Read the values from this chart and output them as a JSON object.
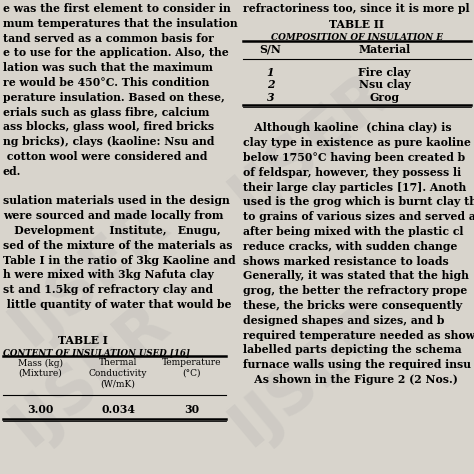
{
  "bg_color": "#d8d4cc",
  "page_bg": "#f0ede6",
  "watermark_text": "IJSER",
  "left_text_lines": [
    "e was the first element to consider in",
    "mum temperatures that the insulation",
    "tand served as a common basis for",
    "e to use for the application. Also, the",
    "lation was such that the maximum",
    "re would be 450°C. This condition",
    "perature insulation. Based on these,",
    "erials such as glass fibre, calcium",
    "ass blocks, glass wool, fired bricks",
    "ng bricks), clays (kaoline: Nsu and",
    " cotton wool were considered and",
    "ed.",
    "",
    "sulation materials used in the design",
    "were sourced and made locally from",
    "   Development    Institute,   Enugu,",
    "sed of the mixture of the materials as",
    "Table I in the ratio of 3kg Kaoline and",
    "h were mixed with 3kg Nafuta clay",
    "st and 1.5kg of refractory clay and",
    " little quantity of water that would be"
  ],
  "table1_title": "TABLE I",
  "table1_subtitle": "CONTENT OF INSULATION USED [16]",
  "table1_headers": [
    "Mass (kg)\n(Mixture)",
    "Thermal\nConductivity\n(W/mK)",
    "Temperature\n(°C)"
  ],
  "table1_rows": [
    [
      "3.00",
      "0.034",
      "30"
    ]
  ],
  "right_top_text": "refractoriness too, since it is more pl",
  "table2_title": "TABLE II",
  "table2_subtitle": "COMPOSITION OF INSULATION E",
  "table2_headers": [
    "S/N",
    "Material"
  ],
  "table2_rows": [
    [
      "1",
      "Fire clay"
    ],
    [
      "2",
      "Nsu clay"
    ],
    [
      "3",
      "Grog"
    ]
  ],
  "right_bottom_lines": [
    "   Although kaoline  (china clay) is",
    "clay type in existence as pure kaoline",
    "below 1750°C having been created b",
    "of feldspar, however, they possess li",
    "their large clay particles [17]. Anoth",
    "used is the grog which is burnt clay th",
    "to grains of various sizes and served a",
    "after being mixed with the plastic cl",
    "reduce cracks, with sudden change",
    "shows marked resistance to loads",
    "Generally, it was stated that the high",
    "grog, the better the refractory prope",
    "these, the bricks were consequently",
    "designed shapes and sizes, and b",
    "required temperature needed as show",
    "labelled parts depicting the schema",
    "furnace walls using the required insu",
    "   As shown in the Figure 2 (2 Nos.)"
  ]
}
